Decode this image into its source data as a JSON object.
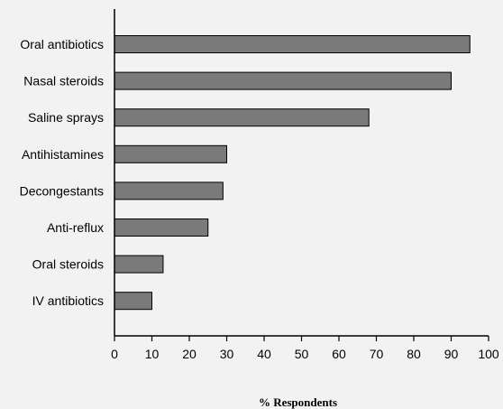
{
  "chart_data": {
    "type": "bar",
    "orientation": "horizontal",
    "categories": [
      "Oral antibiotics",
      "Nasal steroids",
      "Saline sprays",
      "Antihistamines",
      "Decongestants",
      "Anti-reflux",
      "Oral steroids",
      "IV antibiotics"
    ],
    "values": [
      95,
      90,
      68,
      30,
      29,
      25,
      13,
      10
    ],
    "xlabel": "% Respondents",
    "xlim": [
      0,
      100
    ],
    "xticks": [
      "0",
      "10",
      "20",
      "30",
      "40",
      "50",
      "60",
      "70",
      "80",
      "90",
      "100"
    ],
    "grid": false,
    "bar_color": "#7a7a7a",
    "bar_stroke": "#000000",
    "background": "#f2f2f2"
  }
}
